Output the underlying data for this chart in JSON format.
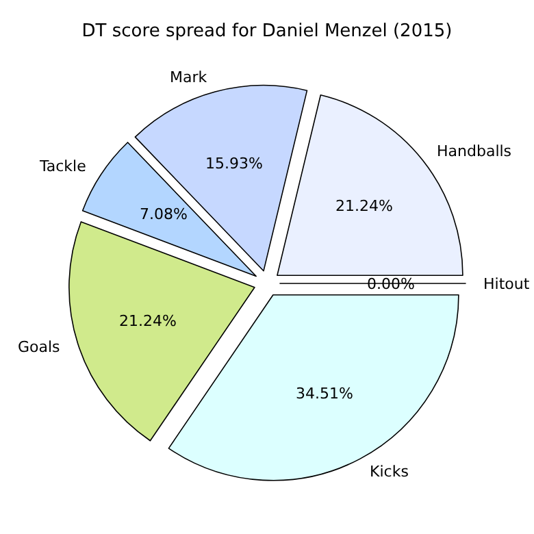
{
  "chart_data": {
    "type": "pie",
    "title": "DT score spread for Daniel Menzel (2015)",
    "categories": [
      "Hitout",
      "Handballs",
      "Mark",
      "Tackle",
      "Goals",
      "Kicks"
    ],
    "values": [
      0.0,
      21.24,
      15.93,
      7.08,
      21.24,
      34.51
    ],
    "value_labels": [
      "0.00%",
      "21.24%",
      "15.93%",
      "7.08%",
      "21.24%",
      "34.51%"
    ],
    "colors": [
      "#f0f0ff",
      "#eaf0ff",
      "#c6d8ff",
      "#b3d6ff",
      "#d0ea8c",
      "#dcffff"
    ],
    "legend": false
  }
}
